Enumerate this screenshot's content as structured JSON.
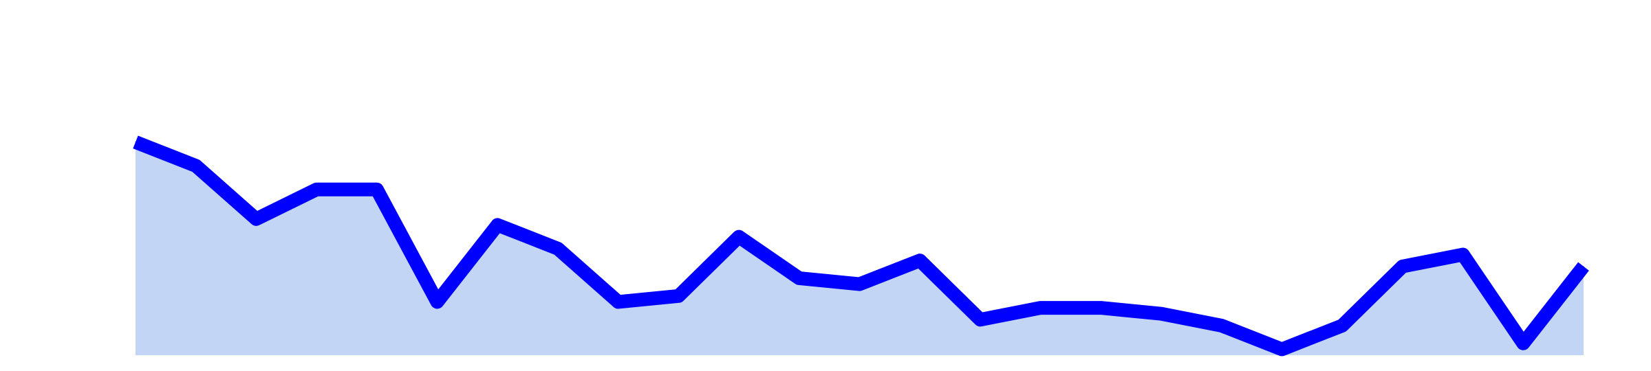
{
  "chart_data": {
    "type": "area",
    "title": "",
    "xlabel": "",
    "ylabel": "",
    "x": [
      1,
      2,
      3,
      4,
      5,
      6,
      7,
      8,
      9,
      10,
      11,
      12,
      13,
      14,
      15,
      16,
      17,
      18,
      19,
      20,
      21,
      22,
      23,
      24,
      25
    ],
    "series": [
      {
        "values": [
          56,
          52,
          43,
          48,
          48,
          29,
          42,
          38,
          29,
          30,
          40,
          33,
          32,
          36,
          26,
          28,
          28,
          27,
          25,
          21,
          25,
          35,
          37,
          22,
          35
        ]
      }
    ],
    "ylim": [
      20,
      80
    ],
    "grid": false,
    "colors": {
      "line": "#0000ff",
      "fill": "#c3d5f5"
    }
  }
}
